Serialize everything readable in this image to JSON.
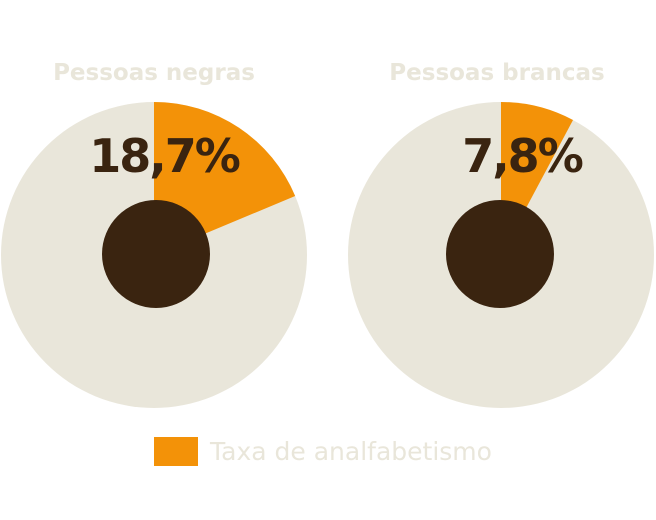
{
  "chart_data": [
    {
      "type": "pie",
      "title": "Pessoas negras",
      "value_label": "18,7%",
      "slices": [
        {
          "name": "Taxa de analfabetismo",
          "value": 18.7
        },
        {
          "name": "",
          "value": 81.3
        }
      ]
    },
    {
      "type": "pie",
      "title": "Pessoas brancas",
      "value_label": "7,8%",
      "slices": [
        {
          "name": "Taxa de analfabetismo",
          "value": 7.8
        },
        {
          "name": "",
          "value": 92.2
        }
      ]
    }
  ],
  "legend": {
    "label": "Taxa de analfabetismo",
    "placement": "bottom-center"
  },
  "colors": {
    "highlight": "#F39208",
    "rest": "#E9E6DA",
    "center": "#3A2410",
    "title": "#E9E6DA",
    "value": "#3A2410",
    "legend_text": "#E9E6DA"
  }
}
